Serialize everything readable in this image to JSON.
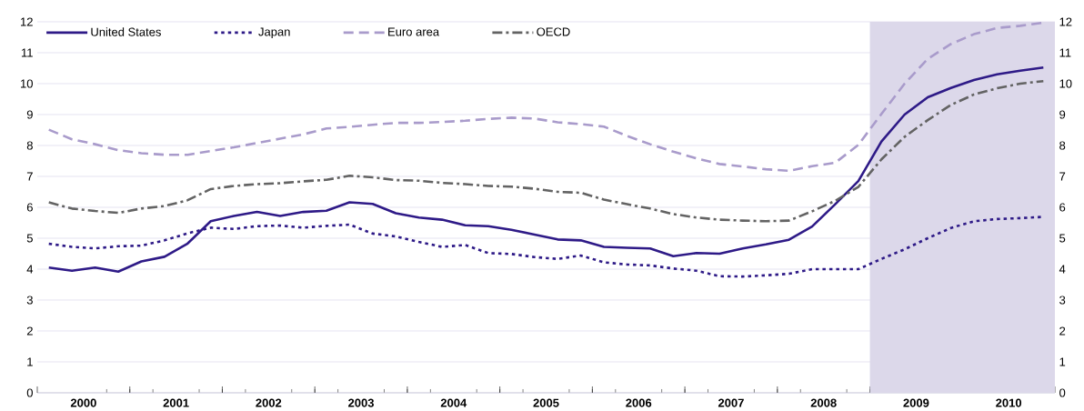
{
  "chart_data": {
    "type": "line",
    "x": [
      2000.125,
      2000.375,
      2000.625,
      2000.875,
      2001.125,
      2001.375,
      2001.625,
      2001.875,
      2002.125,
      2002.375,
      2002.625,
      2002.875,
      2003.125,
      2003.375,
      2003.625,
      2003.875,
      2004.125,
      2004.375,
      2004.625,
      2004.875,
      2005.125,
      2005.375,
      2005.625,
      2005.875,
      2006.125,
      2006.375,
      2006.625,
      2006.875,
      2007.125,
      2007.375,
      2007.625,
      2007.875,
      2008.125,
      2008.375,
      2008.625,
      2008.875,
      2009.125,
      2009.375,
      2009.625,
      2009.875,
      2010.125,
      2010.375,
      2010.625,
      2010.875
    ],
    "series": [
      {
        "name": "United States",
        "color": "#2e1a87",
        "line_style": "solid",
        "values": [
          4.05,
          3.95,
          4.05,
          3.92,
          4.25,
          4.4,
          4.83,
          5.55,
          5.72,
          5.85,
          5.72,
          5.85,
          5.89,
          6.16,
          6.11,
          5.81,
          5.67,
          5.6,
          5.42,
          5.39,
          5.27,
          5.12,
          4.96,
          4.93,
          4.72,
          4.69,
          4.67,
          4.42,
          4.52,
          4.5,
          4.67,
          4.8,
          4.95,
          5.38,
          6.1,
          6.85,
          8.13,
          9.0,
          9.56,
          9.86,
          10.12,
          10.3,
          10.42,
          10.52
        ]
      },
      {
        "name": "Japan",
        "color": "#2e1a87",
        "line_style": "dotted",
        "values": [
          4.82,
          4.72,
          4.67,
          4.74,
          4.76,
          4.93,
          5.16,
          5.34,
          5.3,
          5.39,
          5.41,
          5.34,
          5.4,
          5.44,
          5.15,
          5.06,
          4.88,
          4.72,
          4.78,
          4.52,
          4.49,
          4.39,
          4.33,
          4.44,
          4.22,
          4.15,
          4.12,
          4.02,
          3.95,
          3.77,
          3.76,
          3.8,
          3.85,
          4.0,
          4.0,
          4.0,
          4.33,
          4.64,
          5.0,
          5.33,
          5.55,
          5.62,
          5.65,
          5.69
        ]
      },
      {
        "name": "Euro area",
        "color": "#a99bcb",
        "line_style": "dashed",
        "values": [
          8.51,
          8.2,
          8.04,
          7.85,
          7.75,
          7.7,
          7.7,
          7.82,
          7.94,
          8.08,
          8.22,
          8.36,
          8.55,
          8.6,
          8.67,
          8.73,
          8.73,
          8.76,
          8.8,
          8.86,
          8.9,
          8.87,
          8.75,
          8.69,
          8.61,
          8.31,
          8.04,
          7.8,
          7.58,
          7.4,
          7.32,
          7.23,
          7.18,
          7.33,
          7.44,
          8.02,
          9.02,
          10.0,
          10.8,
          11.28,
          11.6,
          11.8,
          11.87,
          11.97
        ]
      },
      {
        "name": "OECD",
        "color": "#636363",
        "line_style": "dashdot",
        "values": [
          6.16,
          5.96,
          5.88,
          5.82,
          5.96,
          6.04,
          6.23,
          6.59,
          6.69,
          6.75,
          6.78,
          6.84,
          6.89,
          7.02,
          6.97,
          6.88,
          6.86,
          6.79,
          6.75,
          6.69,
          6.67,
          6.6,
          6.5,
          6.47,
          6.25,
          6.1,
          5.96,
          5.78,
          5.67,
          5.6,
          5.57,
          5.55,
          5.57,
          5.87,
          6.21,
          6.66,
          7.55,
          8.28,
          8.82,
          9.31,
          9.65,
          9.85,
          10.0,
          10.08
        ]
      }
    ],
    "xlim": [
      2000,
      2011
    ],
    "xticks": [
      {
        "value": 2000.5,
        "label": "2000"
      },
      {
        "value": 2001.5,
        "label": "2001"
      },
      {
        "value": 2002.5,
        "label": "2002"
      },
      {
        "value": 2003.5,
        "label": "2003"
      },
      {
        "value": 2004.5,
        "label": "2004"
      },
      {
        "value": 2005.5,
        "label": "2005"
      },
      {
        "value": 2006.5,
        "label": "2006"
      },
      {
        "value": 2007.5,
        "label": "2007"
      },
      {
        "value": 2008.5,
        "label": "2008"
      },
      {
        "value": 2009.5,
        "label": "2009"
      },
      {
        "value": 2010.5,
        "label": "2010"
      },
      {
        "value": 2000,
        "label": null
      },
      {
        "value": 2001,
        "label": null
      },
      {
        "value": 2002,
        "label": null
      },
      {
        "value": 2003,
        "label": null
      },
      {
        "value": 2004,
        "label": null
      },
      {
        "value": 2005,
        "label": null
      },
      {
        "value": 2006,
        "label": null
      },
      {
        "value": 2007,
        "label": null
      },
      {
        "value": 2008,
        "label": null
      },
      {
        "value": 2009,
        "label": null
      },
      {
        "value": 2010,
        "label": null
      },
      {
        "value": 2011,
        "label": null
      }
    ],
    "ylim": [
      0,
      12
    ],
    "yticks": [
      0,
      1,
      2,
      3,
      4,
      5,
      6,
      7,
      8,
      9,
      10,
      11,
      12
    ],
    "y2lim": [
      0,
      12
    ],
    "y2ticks": [
      0,
      1,
      2,
      3,
      4,
      5,
      6,
      7,
      8,
      9,
      10,
      11,
      12
    ],
    "bands": [
      {
        "axis": "x",
        "from": 2009,
        "to": 2011,
        "color": "#dcd8ea"
      }
    ],
    "grid": "y",
    "legend": "top left",
    "marker": "none"
  }
}
